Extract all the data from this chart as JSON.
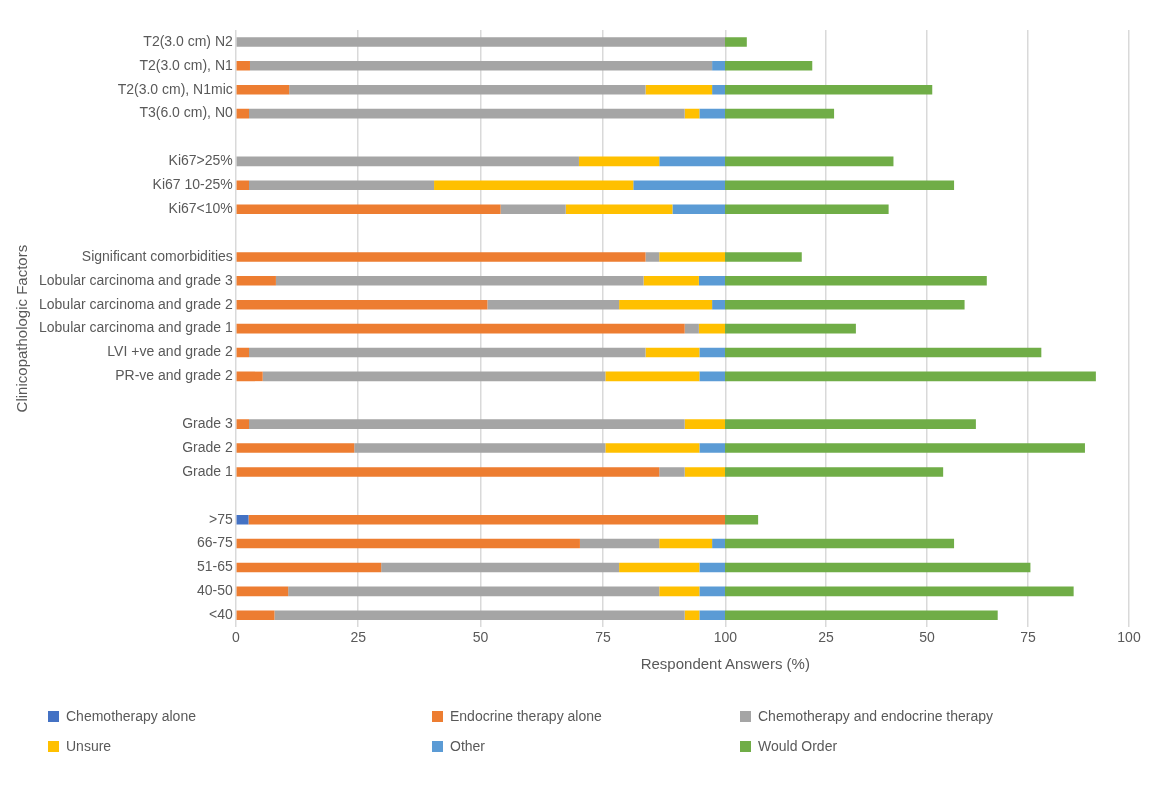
{
  "chart_data": [
    {
      "type": "bar",
      "orientation": "horizontal",
      "stacked": true,
      "xlabel": "Respondent Answers (%)",
      "ylabel": "Clinicopathologic Factors",
      "categories": [
        "T2(3.0 cm) N2",
        "T2(3.0 cm), N1",
        "T2(3.0 cm), N1mic",
        "T3(6.0 cm), N0",
        null,
        "Ki67>25%",
        "Ki67 10-25%",
        "Ki67<10%",
        null,
        "Significant comorbidities",
        "Lobular carcinoma and grade 3",
        "Lobular carcinoma and grade 2",
        "Lobular carcinoma and grade 1",
        "LVI +ve and grade 2",
        "PR-ve and grade 2",
        null,
        "Grade 3",
        "Grade 2",
        "Grade 1",
        null,
        ">75",
        "66-75",
        "51-65",
        "40-50",
        "<40"
      ],
      "series": [
        {
          "name": "Chemotherapy alone",
          "color": "#4472c4",
          "values": [
            0,
            0,
            0,
            0,
            null,
            0,
            0,
            0,
            null,
            0,
            0,
            0,
            0,
            0,
            0,
            null,
            0,
            0,
            0,
            null,
            2.6,
            0,
            0,
            0,
            0
          ]
        },
        {
          "name": "Endocrine therapy alone",
          "color": "#ed7d31",
          "values": [
            0,
            2.9,
            10.9,
            2.7,
            null,
            0,
            2.7,
            54.1,
            null,
            83.7,
            8.2,
            51.4,
            91.7,
            2.7,
            5.5,
            null,
            2.7,
            24.2,
            86.5,
            null,
            97.4,
            70.3,
            29.7,
            10.7,
            7.9
          ]
        },
        {
          "name": "Chemotherapy and endocrine therapy",
          "color": "#a5a5a5",
          "values": [
            100,
            94.4,
            72.8,
            89.0,
            null,
            70.1,
            37.8,
            13.3,
            null,
            2.8,
            75.1,
            26.9,
            2.9,
            81.0,
            70.0,
            null,
            89.0,
            51.3,
            5.2,
            null,
            0,
            16.2,
            48.6,
            75.8,
            83.8
          ]
        },
        {
          "name": "Unsure",
          "color": "#ffc000",
          "values": [
            0,
            0,
            13.6,
            3.0,
            null,
            16.4,
            40.7,
            21.8,
            null,
            13.5,
            11.3,
            19.0,
            5.4,
            11.0,
            19.2,
            null,
            8.3,
            19.2,
            8.3,
            null,
            0,
            10.8,
            16.4,
            8.2,
            3.0
          ]
        },
        {
          "name": "Other",
          "color": "#5b9bd5",
          "values": [
            0,
            2.7,
            2.7,
            5.3,
            null,
            13.5,
            18.8,
            10.8,
            null,
            0,
            5.4,
            2.7,
            0,
            5.3,
            5.3,
            null,
            0,
            5.3,
            0,
            null,
            0,
            2.7,
            5.3,
            5.3,
            5.3
          ]
        }
      ],
      "xlim": [
        0,
        100
      ],
      "xticks": [
        0,
        25,
        50,
        75,
        100
      ],
      "grid": "x",
      "legend": "bottom"
    },
    {
      "type": "bar",
      "orientation": "horizontal",
      "tick_labels": "x",
      "categories": [
        null,
        null,
        null,
        null,
        null,
        null,
        null,
        null,
        null,
        null,
        null,
        null,
        null,
        null,
        null,
        null,
        null,
        null,
        null,
        null,
        null,
        null,
        null,
        null,
        null
      ],
      "series": [
        {
          "name": "Would Order",
          "color": "#70ad47",
          "values": [
            5.4,
            21.6,
            51.3,
            27,
            null,
            41.7,
            56.7,
            40.5,
            null,
            19,
            64.8,
            59.3,
            32.4,
            78.3,
            91.8,
            null,
            62.1,
            89.1,
            54,
            null,
            8.2,
            56.7,
            75.6,
            86.3,
            67.5
          ]
        }
      ],
      "xlim": [
        0,
        100
      ],
      "xticks": [
        25,
        50,
        75,
        100
      ],
      "grid": "x",
      "legend": "bottom"
    }
  ]
}
